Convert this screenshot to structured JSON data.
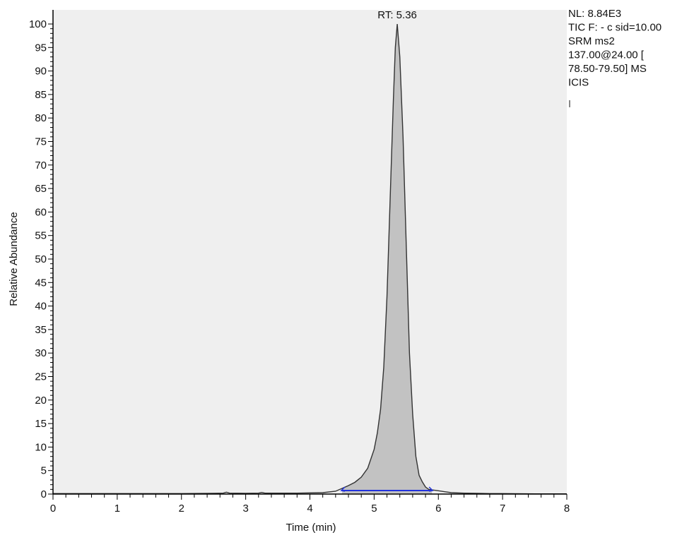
{
  "chart_data": {
    "type": "area",
    "title": "",
    "xlabel": "Time (min)",
    "ylabel": "Relative Abundance",
    "xlim": [
      0,
      8
    ],
    "ylim": [
      0,
      100
    ],
    "x_ticks": [
      "0",
      "1",
      "2",
      "3",
      "4",
      "5",
      "6",
      "7",
      "8"
    ],
    "y_ticks": [
      "0",
      "5",
      "10",
      "15",
      "20",
      "25",
      "30",
      "35",
      "40",
      "45",
      "50",
      "55",
      "60",
      "65",
      "70",
      "75",
      "80",
      "85",
      "90",
      "95",
      "100"
    ],
    "peak_annotation": {
      "text": "RT: 5.36",
      "x": 5.36,
      "y": 100
    },
    "info_text": [
      "NL: 8.84E3",
      "TIC F: - c sid=10.00",
      "SRM ms2",
      "137.00@24.00 [",
      "78.50-79.50]  MS",
      "ICIS"
    ],
    "integration_baseline": {
      "x_start": 4.5,
      "x_end": 5.9,
      "y": 0.6
    },
    "grid": false,
    "colors": {
      "fill": "#c2c2c2",
      "line": "#333333",
      "plot_bg": "#efefef",
      "baseline": "#2233dd"
    },
    "series": [
      {
        "x": [
          0.0,
          0.5,
          1.0,
          1.5,
          2.0,
          2.5,
          2.65,
          2.7,
          2.75,
          3.0,
          3.2,
          3.25,
          3.3,
          3.5,
          3.8,
          4.0,
          4.2,
          4.4,
          4.5,
          4.6,
          4.7,
          4.8,
          4.9,
          5.0,
          5.05,
          5.1,
          5.15,
          5.2,
          5.25,
          5.3,
          5.33,
          5.36,
          5.4,
          5.45,
          5.5,
          5.55,
          5.6,
          5.65,
          5.7,
          5.75,
          5.8,
          5.85,
          5.9,
          6.0,
          6.1,
          6.2,
          6.4,
          6.6,
          6.8,
          7.0,
          7.5,
          8.0
        ],
        "y": [
          0.1,
          0.1,
          0.1,
          0.1,
          0.1,
          0.15,
          0.2,
          0.4,
          0.2,
          0.15,
          0.2,
          0.35,
          0.2,
          0.2,
          0.2,
          0.25,
          0.3,
          0.6,
          1.2,
          1.8,
          2.5,
          3.6,
          5.5,
          9.5,
          13,
          18,
          27,
          42,
          63,
          84,
          95,
          100,
          93,
          76,
          53,
          30,
          17,
          8,
          4,
          2.6,
          1.5,
          1.0,
          0.9,
          0.7,
          0.5,
          0.3,
          0.2,
          0.15,
          0.1,
          0.1,
          0.05,
          0.05
        ]
      }
    ]
  }
}
